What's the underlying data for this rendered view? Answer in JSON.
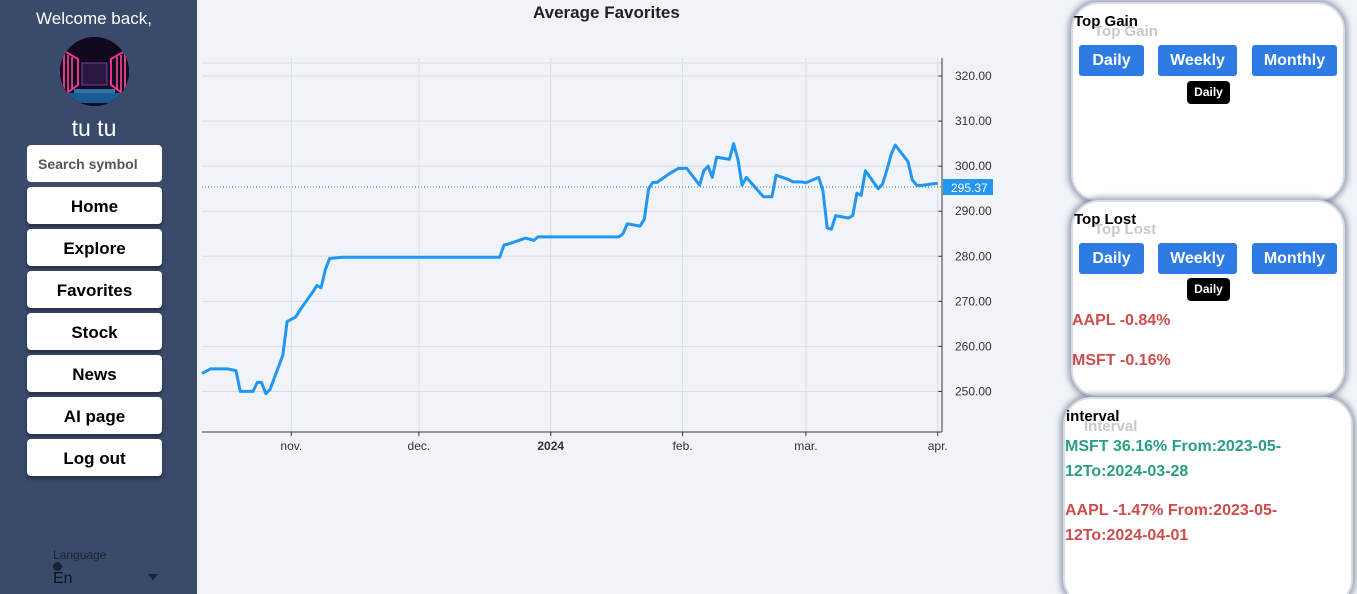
{
  "sidebar": {
    "welcome": "Welcome back,",
    "username": "tu tu",
    "search_placeholder": "Search symbol",
    "nav": [
      "Home",
      "Explore",
      "Favorites",
      "Stock",
      "News",
      "AI page",
      "Log out"
    ],
    "language_label": "Language",
    "language_value": "En"
  },
  "chart_title": "Average Favorites",
  "chart_data": {
    "type": "line",
    "title": "Average Favorites",
    "x_tick_labels": [
      "nov.",
      "dec.",
      "2024",
      "feb.",
      "mar.",
      "apr."
    ],
    "y_tick_labels": [
      "250.00",
      "260.00",
      "270.00",
      "280.00",
      "290.00",
      "300.00",
      "310.00",
      "320.00"
    ],
    "ylim": [
      241,
      324
    ],
    "xlim": [
      "2023-10-11",
      "2024-04-02"
    ],
    "last_value_label": "295.37",
    "last_value": 295.37,
    "color": "#2196f3",
    "grid": true,
    "series": [
      {
        "x": [
          "2023-10-11",
          "2023-10-13",
          "2023-10-17",
          "2023-10-19",
          "2023-10-20",
          "2023-10-23",
          "2023-10-24",
          "2023-10-25",
          "2023-10-26",
          "2023-10-27",
          "2023-10-30",
          "2023-10-31",
          "2023-11-01",
          "2023-11-02",
          "2023-11-03",
          "2023-11-06",
          "2023-11-07",
          "2023-11-08",
          "2023-11-09",
          "2023-11-10",
          "2023-11-13",
          "2023-11-14",
          "2023-11-15",
          "2023-11-16",
          "2023-11-17",
          "2023-11-20",
          "2023-11-22",
          "2023-12-20",
          "2023-12-21",
          "2023-12-22",
          "2023-12-26",
          "2023-12-27",
          "2023-12-28",
          "2023-12-29",
          "2024-01-02",
          "2024-01-17",
          "2024-01-18",
          "2024-01-19",
          "2024-01-22",
          "2024-01-23",
          "2024-01-24",
          "2024-01-25",
          "2024-01-26",
          "2024-01-29",
          "2024-01-31",
          "2024-02-01",
          "2024-02-02",
          "2024-02-05",
          "2024-02-06",
          "2024-02-07",
          "2024-02-08",
          "2024-02-09",
          "2024-02-12",
          "2024-02-13",
          "2024-02-14",
          "2024-02-15",
          "2024-02-16",
          "2024-02-20",
          "2024-02-21",
          "2024-02-22",
          "2024-02-23",
          "2024-02-26",
          "2024-02-27",
          "2024-02-28",
          "2024-02-29",
          "2024-03-01",
          "2024-03-04",
          "2024-03-05",
          "2024-03-06",
          "2024-03-07",
          "2024-03-08",
          "2024-03-11",
          "2024-03-12",
          "2024-03-13",
          "2024-03-14",
          "2024-03-15",
          "2024-03-18",
          "2024-03-19",
          "2024-03-20",
          "2024-03-21",
          "2024-03-22",
          "2024-03-25",
          "2024-03-26",
          "2024-03-27",
          "2024-03-28",
          "2024-04-01"
        ],
        "y": [
          254,
          255,
          255,
          254.6,
          250,
          250,
          252,
          252,
          249.5,
          250.4,
          258,
          265.5,
          266,
          266.5,
          268,
          272,
          273.5,
          273,
          277,
          279.5,
          279.8,
          279.8,
          279.8,
          279.8,
          279.8,
          279.8,
          279.8,
          279.8,
          282.5,
          282.7,
          284,
          283.8,
          283.5,
          284.3,
          284.3,
          284.3,
          285,
          287.2,
          286.7,
          288.2,
          295,
          296.4,
          296.4,
          298.4,
          299.5,
          299.5,
          299.5,
          295.8,
          299,
          300,
          297.5,
          302,
          301.5,
          305,
          301.5,
          295.8,
          297.5,
          293.2,
          293.2,
          293.2,
          298,
          297,
          296.5,
          296.5,
          296.5,
          296.3,
          297.5,
          294.6,
          286.3,
          286,
          289,
          288.5,
          289,
          294,
          293.5,
          299,
          295,
          296,
          299,
          302.5,
          304.7,
          301,
          297,
          295.8,
          295.7,
          296.2
        ]
      }
    ]
  },
  "top_gain": {
    "title": "Top Gain",
    "ghost": "Top Gain",
    "buttons": [
      "Daily",
      "Weekly",
      "Monthly"
    ],
    "tooltip": "Daily"
  },
  "top_lost": {
    "title": "Top Lost",
    "ghost": "Top Lost",
    "buttons": [
      "Daily",
      "Weekly",
      "Monthly"
    ],
    "tooltip": "Daily",
    "items": [
      "AAPL -0.84%",
      "MSFT -0.16%"
    ]
  },
  "interval": {
    "title": "interval",
    "ghost": "Interval",
    "items": [
      {
        "text": "MSFT 36.16% From:2023-05-12To:2024-03-28",
        "color": "#2a9d83"
      },
      {
        "text": "AAPL -1.47% From:2023-05-12To:2024-04-01",
        "color": "#cf4c4c"
      }
    ]
  },
  "colors": {
    "sidebar": "#394a6b",
    "button_blue": "#2f7be4",
    "gain_green": "#2a9d83",
    "loss_red": "#cf4c4c",
    "line_blue": "#2196f3"
  }
}
